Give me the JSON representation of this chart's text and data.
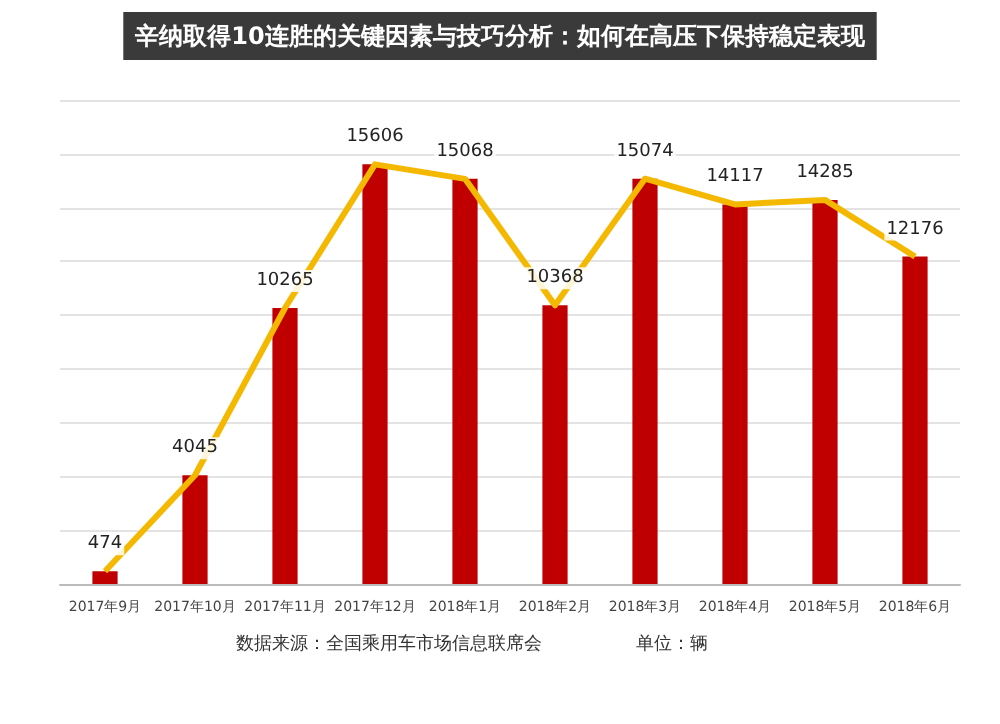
{
  "chart_data": {
    "type": "bar",
    "title": "辛纳取得10连胜的关键因素与技巧分析：如何在高压下保持稳定表现",
    "categories": [
      "2017年9月",
      "2017年10月",
      "2017年11月",
      "2017年12月",
      "2018年1月",
      "2018年2月",
      "2018年3月",
      "2018年4月",
      "2018年5月",
      "2018年6月"
    ],
    "series": [
      {
        "color": "#c00000",
        "values": [
          474,
          4045,
          10265,
          15606,
          15068,
          10368,
          15074,
          14117,
          14285,
          12176
        ]
      },
      {
        "type": "line",
        "color": "#f5b800",
        "values": [
          474,
          4045,
          10265,
          15606,
          15068,
          10368,
          15074,
          14117,
          14285,
          12176
        ],
        "value_labels": [
          "474",
          "4045",
          "10265",
          "15606",
          "15068",
          "10368",
          "15074",
          "14117",
          "14285",
          "12176"
        ]
      }
    ],
    "ylim": [
      0,
      18000
    ],
    "yticks": [
      {
        "value": 0,
        "label": null
      },
      {
        "value": 2000,
        "label": null
      },
      {
        "value": 4000,
        "label": null
      },
      {
        "value": 6000,
        "label": null
      },
      {
        "value": 8000,
        "label": null
      },
      {
        "value": 10000,
        "label": null
      },
      {
        "value": 12000,
        "label": null
      },
      {
        "value": 14000,
        "label": null
      },
      {
        "value": 16000,
        "label": null
      },
      {
        "value": 18000,
        "label": null
      }
    ],
    "tick_labels": "x",
    "grid": "y",
    "marker": "none",
    "annotations": [
      "数据来源：全国乘用车市场信息联席会",
      "单位：辆"
    ]
  }
}
